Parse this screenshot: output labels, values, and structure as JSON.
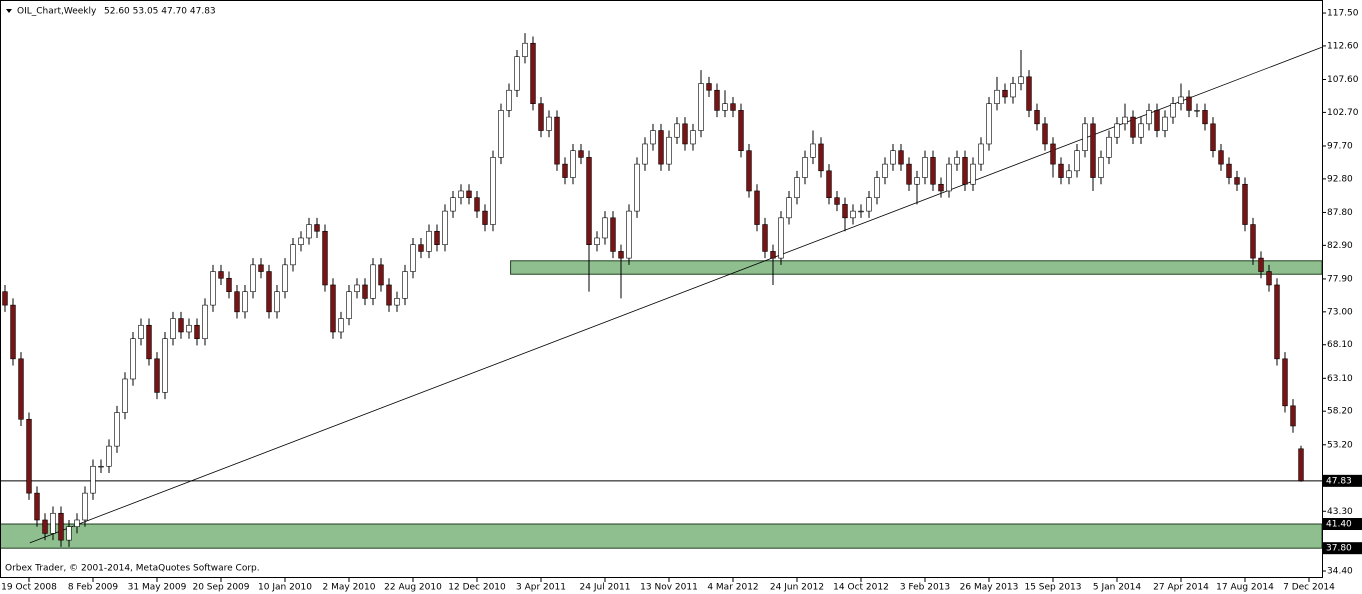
{
  "chart_data": {
    "type": "candlestick",
    "title": "OIL_Chart,Weekly",
    "ohlc_text": "52.60 53.05 47.70 47.83",
    "footer": "Orbex Trader, © 2001-2014, MetaQuotes Software Corp.",
    "up_color": "#ffffff",
    "down_color": "#7a1414",
    "outline_color": "#000000",
    "zone_color": "#8fbf8f",
    "xlim": [
      -0.625,
      164.625
    ],
    "ylim": [
      33.36,
      119.44
    ],
    "xticks": [
      {
        "value": 3,
        "label": "19 Oct 2008"
      },
      {
        "value": 11,
        "label": "8 Feb 2009"
      },
      {
        "value": 19,
        "label": "31 May 2009"
      },
      {
        "value": 27,
        "label": "20 Sep 2009"
      },
      {
        "value": 35,
        "label": "10 Jan 2010"
      },
      {
        "value": 43,
        "label": "2 May 2010"
      },
      {
        "value": 51,
        "label": "22 Aug 2010"
      },
      {
        "value": 59,
        "label": "12 Dec 2010"
      },
      {
        "value": 67,
        "label": "3 Apr 2011"
      },
      {
        "value": 75,
        "label": "24 Jul 2011"
      },
      {
        "value": 83,
        "label": "13 Nov 2011"
      },
      {
        "value": 91,
        "label": "4 Mar 2012"
      },
      {
        "value": 99,
        "label": "24 Jun 2012"
      },
      {
        "value": 107,
        "label": "14 Oct 2012"
      },
      {
        "value": 115,
        "label": "3 Feb 2013"
      },
      {
        "value": 123,
        "label": "26 May 2013"
      },
      {
        "value": 131,
        "label": "15 Sep 2013"
      },
      {
        "value": 139,
        "label": "5 Jan 2014"
      },
      {
        "value": 147,
        "label": "27 Apr 2014"
      },
      {
        "value": 155,
        "label": "17 Aug 2014"
      },
      {
        "value": 163,
        "label": "7 Dec 2014"
      }
    ],
    "yticks": [
      {
        "value": 117.5,
        "label": "117.50"
      },
      {
        "value": 112.6,
        "label": "112.60"
      },
      {
        "value": 107.6,
        "label": "107.60"
      },
      {
        "value": 102.7,
        "label": "102.70"
      },
      {
        "value": 97.7,
        "label": "97.70"
      },
      {
        "value": 92.8,
        "label": "92.80"
      },
      {
        "value": 87.8,
        "label": "87.80"
      },
      {
        "value": 82.9,
        "label": "82.90"
      },
      {
        "value": 77.9,
        "label": "77.90"
      },
      {
        "value": 73,
        "label": "73.00"
      },
      {
        "value": 68.1,
        "label": "68.10"
      },
      {
        "value": 63.1,
        "label": "63.10"
      },
      {
        "value": 58.2,
        "label": "58.20"
      },
      {
        "value": 53.2,
        "label": "53.20"
      },
      {
        "value": 43.3,
        "label": "43.30"
      },
      {
        "value": 34.4,
        "label": "34.40"
      }
    ],
    "open": [
      76,
      74,
      66,
      57,
      46,
      42,
      40,
      43,
      39,
      41,
      42,
      46,
      50,
      50,
      53,
      58,
      63,
      69,
      71,
      66,
      61,
      69,
      72,
      70,
      71,
      69,
      74,
      79,
      78,
      76,
      73,
      76,
      80,
      79,
      73,
      76,
      80,
      83,
      84,
      86,
      85,
      77,
      70,
      72,
      76,
      77,
      75,
      80,
      77,
      74,
      75,
      79,
      83,
      82,
      85,
      83,
      88,
      90,
      91,
      90,
      88,
      86,
      96,
      103,
      106,
      111,
      113,
      104,
      100,
      102,
      95,
      93,
      97,
      96,
      83,
      84,
      87,
      82,
      81,
      88,
      95,
      98,
      100,
      95,
      99,
      101,
      98,
      100,
      107,
      106,
      103,
      104,
      103,
      97,
      91,
      86,
      82,
      81,
      87,
      90,
      93,
      96,
      98,
      94,
      90,
      89,
      87,
      88,
      88,
      90,
      93,
      95,
      97,
      95,
      92,
      93,
      96,
      92,
      91,
      95,
      96,
      92,
      95,
      98,
      104,
      106,
      105,
      107,
      108,
      103,
      101,
      98,
      95,
      93,
      94,
      97,
      101,
      93,
      96,
      99,
      101,
      102,
      99,
      101,
      103,
      100,
      102,
      104,
      105,
      103,
      103,
      101,
      97,
      95,
      93,
      92,
      86,
      81,
      79,
      77,
      66,
      59,
      52.6
    ],
    "high": [
      77,
      75,
      67,
      58,
      47,
      43,
      44,
      44,
      42,
      43,
      47,
      51,
      51,
      54,
      59,
      64,
      70,
      72,
      72,
      67,
      70,
      73,
      73,
      72,
      72,
      75,
      80,
      80,
      79,
      77,
      77,
      81,
      81,
      80,
      77,
      81,
      84,
      85,
      87,
      87,
      86,
      78,
      73,
      77,
      78,
      78,
      81,
      81,
      78,
      76,
      80,
      84,
      84,
      86,
      86,
      89,
      91,
      92,
      92,
      91,
      89,
      97,
      104,
      107,
      112,
      114.5,
      114,
      105,
      103,
      103,
      96,
      98,
      98,
      97,
      85,
      88,
      88,
      83,
      89,
      96,
      99,
      101,
      101,
      100,
      102,
      102,
      101,
      109,
      108,
      107,
      106,
      105,
      104,
      98,
      92,
      87,
      83,
      88,
      91,
      94,
      97,
      100,
      99,
      95,
      91,
      90,
      89,
      89,
      91,
      94,
      96,
      98,
      98,
      96,
      94,
      97,
      97,
      93,
      96,
      97,
      97,
      96,
      99,
      105,
      108,
      107,
      108,
      112,
      109,
      104,
      102,
      99,
      96,
      95,
      98,
      102,
      102,
      97,
      100,
      102,
      104,
      103,
      102,
      104,
      104,
      103,
      105,
      107,
      106,
      104,
      104,
      102,
      98,
      96,
      94,
      93,
      87,
      82,
      80,
      78,
      67,
      60,
      53.05
    ],
    "low": [
      73,
      65,
      56,
      45,
      41,
      39,
      39,
      38,
      38,
      40,
      41,
      45,
      49,
      49,
      52,
      57,
      62,
      68,
      65,
      60,
      60,
      68,
      69,
      69,
      68,
      68,
      73,
      77,
      75,
      72,
      72,
      75,
      78,
      72,
      72,
      75,
      79,
      82,
      83,
      84,
      76,
      69,
      69,
      71,
      75,
      74,
      74,
      76,
      73,
      73,
      74,
      78,
      81,
      81,
      82,
      82,
      87,
      89,
      89,
      87,
      85,
      85,
      95,
      102,
      105,
      110,
      103,
      99,
      99,
      94,
      92,
      92,
      95,
      76,
      82,
      83,
      81,
      75,
      80,
      87,
      94,
      97,
      94,
      94,
      98,
      97,
      97,
      99,
      105,
      102,
      102,
      102,
      96,
      90,
      85,
      81,
      77,
      80,
      86,
      89,
      92,
      95,
      93,
      89,
      88,
      85,
      86,
      87,
      87,
      89,
      92,
      94,
      94,
      91,
      89,
      92,
      91,
      90,
      90,
      94,
      91,
      91,
      94,
      97,
      103,
      104,
      104,
      106,
      102,
      100,
      97,
      93,
      92,
      92,
      93,
      96,
      91,
      92,
      95,
      98,
      100,
      98,
      98,
      100,
      99,
      99,
      101,
      103,
      102,
      102,
      100,
      96,
      94,
      92,
      91,
      85,
      80,
      78,
      76,
      65,
      58,
      55,
      47.7
    ],
    "close": [
      74,
      66,
      57,
      46,
      42,
      40,
      43,
      39,
      41,
      42,
      46,
      50,
      50,
      53,
      58,
      63,
      69,
      71,
      66,
      61,
      69,
      72,
      70,
      71,
      69,
      74,
      79,
      78,
      76,
      73,
      76,
      80,
      79,
      73,
      76,
      80,
      83,
      84,
      86,
      85,
      77,
      70,
      72,
      76,
      77,
      75,
      80,
      77,
      74,
      75,
      79,
      83,
      82,
      85,
      83,
      88,
      90,
      91,
      90,
      88,
      86,
      96,
      103,
      106,
      111,
      113,
      104,
      100,
      102,
      95,
      93,
      97,
      96,
      83,
      84,
      87,
      82,
      81,
      88,
      95,
      98,
      100,
      95,
      99,
      101,
      98,
      100,
      107,
      106,
      103,
      104,
      103,
      97,
      91,
      86,
      82,
      81,
      87,
      90,
      93,
      96,
      98,
      94,
      90,
      89,
      87,
      88,
      88,
      90,
      93,
      95,
      97,
      95,
      92,
      93,
      96,
      92,
      91,
      95,
      96,
      92,
      95,
      98,
      104,
      106,
      105,
      107,
      108,
      103,
      101,
      98,
      95,
      93,
      94,
      97,
      101,
      93,
      96,
      99,
      101,
      102,
      99,
      101,
      103,
      100,
      102,
      104,
      105,
      103,
      103,
      101,
      97,
      95,
      93,
      92,
      86,
      81,
      79,
      77,
      66,
      59,
      56,
      47.83
    ],
    "trendline": {
      "x": [
        3.1,
        164.6
      ],
      "y": [
        38.6,
        112.4
      ]
    },
    "zones": [
      {
        "start": 63.2,
        "low": 78.6,
        "high": 80.6
      },
      {
        "start": -0.625,
        "low": {
          "value": 37.8,
          "label": "37.80"
        },
        "high": {
          "value": 41.4,
          "label": "41.40"
        }
      }
    ],
    "levels": [
      {
        "value": 47.83,
        "label": "47.83"
      }
    ]
  }
}
